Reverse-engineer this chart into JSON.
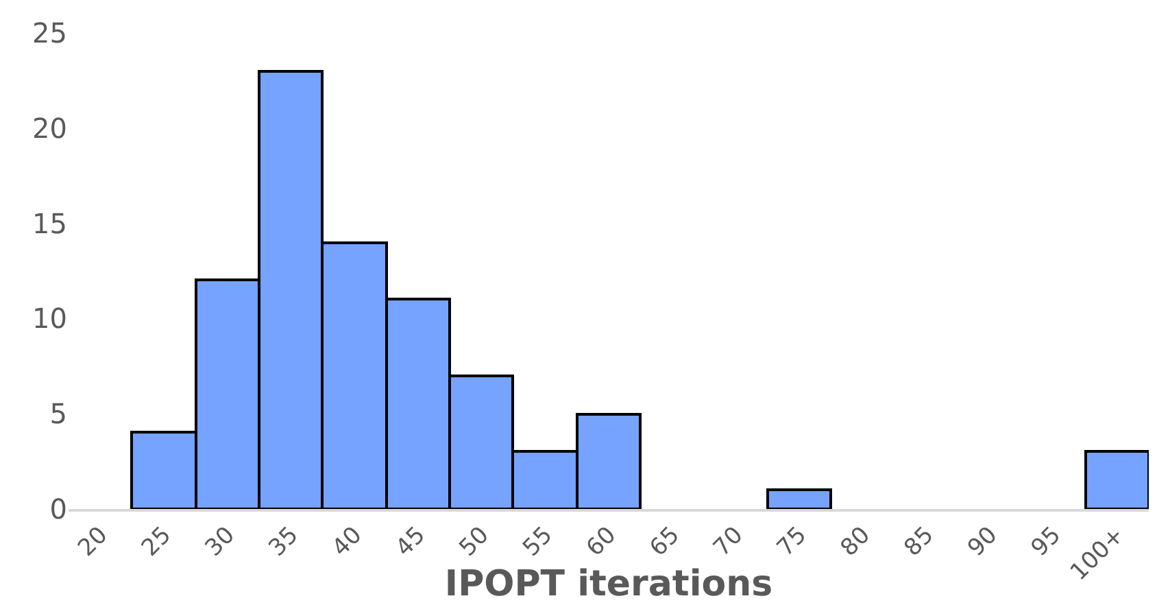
{
  "chart_data": {
    "type": "bar",
    "xlabel": "IPOPT iterations",
    "categories": [
      "20",
      "25",
      "30",
      "35",
      "40",
      "45",
      "50",
      "55",
      "60",
      "65",
      "70",
      "75",
      "80",
      "85",
      "90",
      "95",
      "100+"
    ],
    "values": [
      0,
      4,
      12,
      23,
      14,
      11,
      7,
      3,
      5,
      0,
      0,
      1,
      0,
      0,
      0,
      0,
      3
    ],
    "color": "#75a3ff",
    "ylim": [
      0,
      25
    ],
    "yticks": [
      0,
      5,
      10,
      15,
      20,
      25
    ],
    "grid": false
  }
}
